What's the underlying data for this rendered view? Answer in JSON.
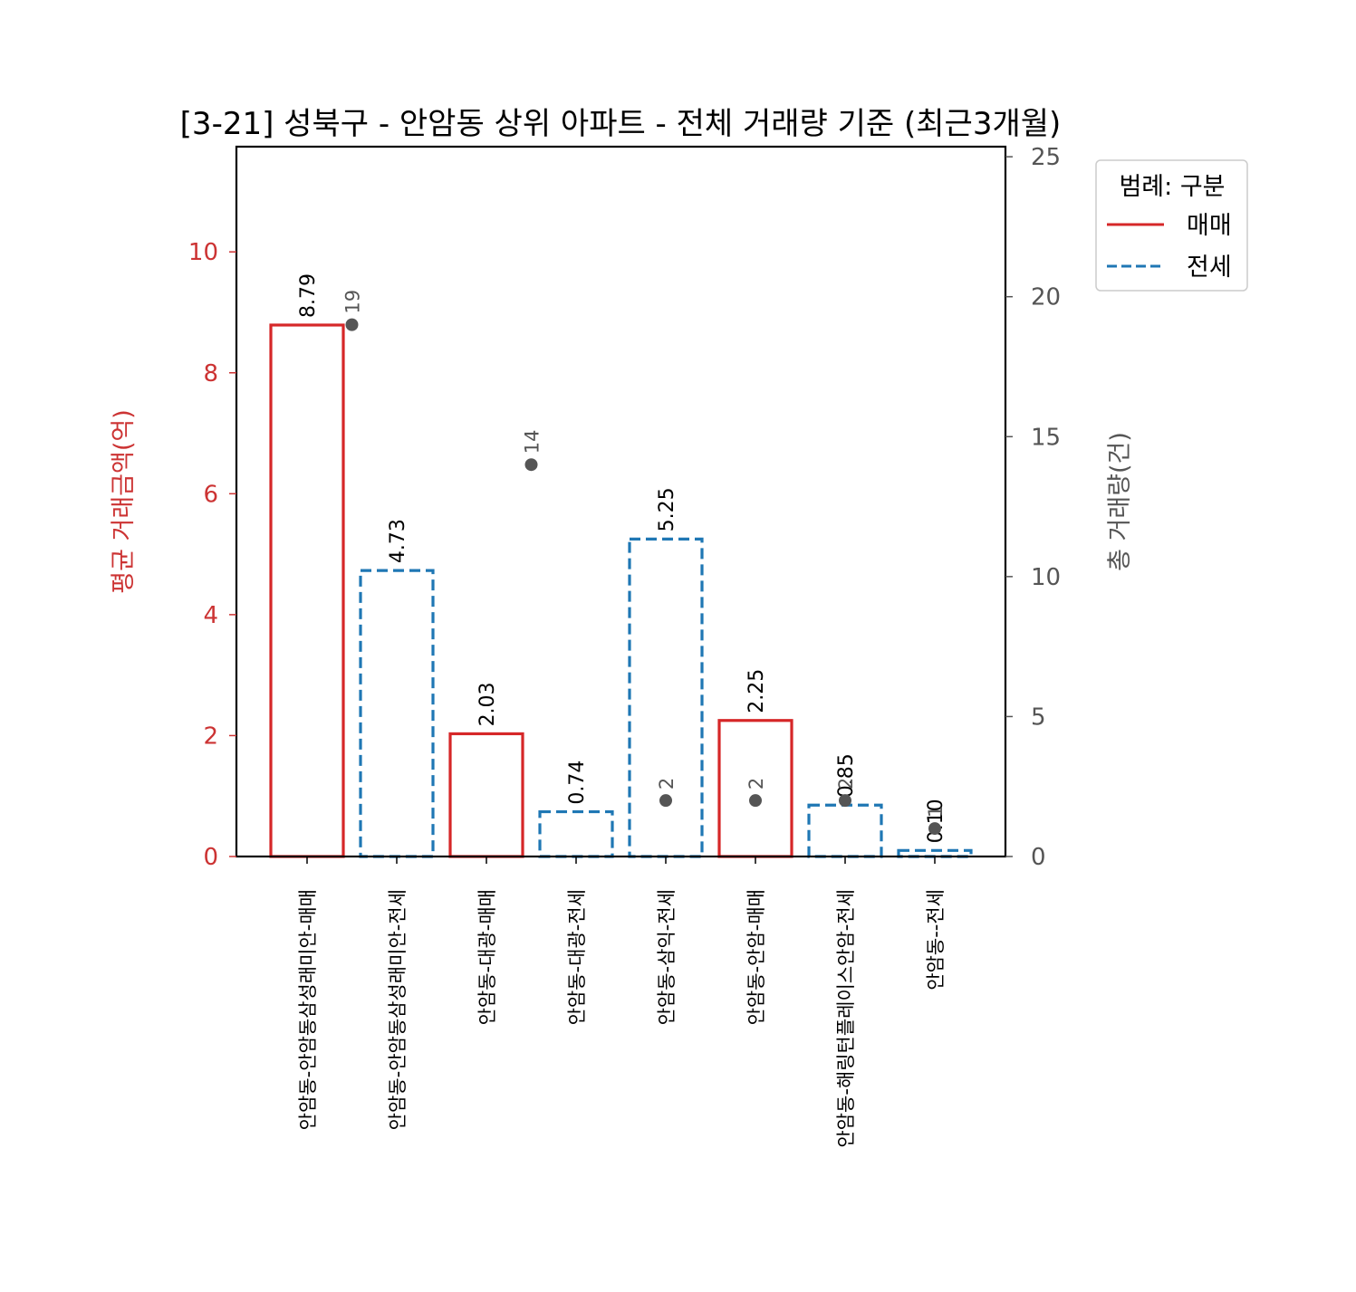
{
  "chart_data": {
    "type": "bar",
    "title": "[3-21] 성북구 - 안암동 상위 아파트 - 전체 거래량 기준 (최근3개월)",
    "xlabel": "",
    "ylabel": "평균 거래금액(억)",
    "ylabel_right": "총 거래량(건)",
    "ylim": [
      0,
      11.74
    ],
    "ylim_right": [
      0,
      25.36
    ],
    "yticks": [
      0,
      2,
      4,
      6,
      8,
      10
    ],
    "yticks_right": [
      0,
      5,
      10,
      15,
      20,
      25
    ],
    "grid": false,
    "legend_position": "upper right, outside plot",
    "categories": [
      "안암동-안암동삼성래미안-매매",
      "안암동-안암동삼성래미안-전세",
      "안암동-대광-매매",
      "안암동-대광-전세",
      "안암동-삼익-전세",
      "안암동-안암-매매",
      "안암동-해링턴플레이스안암-전세",
      "안암동--전세"
    ],
    "series": [
      {
        "name": "평균 거래금액(억)",
        "axis": "left",
        "values": [
          8.79,
          4.73,
          2.03,
          0.74,
          5.25,
          2.25,
          0.85,
          0.1
        ],
        "labels": [
          "8.79",
          "4.73",
          "2.03",
          "0.74",
          "5.25",
          "2.25",
          "0.85",
          "0.10"
        ],
        "kind": [
          "매매",
          "전세",
          "매매",
          "전세",
          "전세",
          "매매",
          "전세",
          "전세"
        ]
      },
      {
        "name": "총 거래량(건)",
        "axis": "right",
        "type": "scatter",
        "points": [
          {
            "x_pos": 0.5,
            "value": 19,
            "label": "19"
          },
          {
            "x_pos": 2.5,
            "value": 14,
            "label": "14"
          },
          {
            "x_pos": 4,
            "value": 2,
            "label": "2"
          },
          {
            "x_pos": 5,
            "value": 2,
            "label": "2"
          },
          {
            "x_pos": 6,
            "value": 2,
            "label": "2"
          },
          {
            "x_pos": 7,
            "value": 1,
            "label": "1"
          }
        ]
      }
    ],
    "legend": {
      "title": "범례: 구분",
      "entries": [
        {
          "label": "매매",
          "color": "#d62728",
          "style": "solid"
        },
        {
          "label": "전세",
          "color": "#1f77b4",
          "style": "dashed"
        }
      ]
    },
    "colors": {
      "sale": "#d62728",
      "jeonse": "#1f77b4",
      "dot": "#555555",
      "left_axis": "#cc3333",
      "right_axis": "#555555"
    }
  }
}
